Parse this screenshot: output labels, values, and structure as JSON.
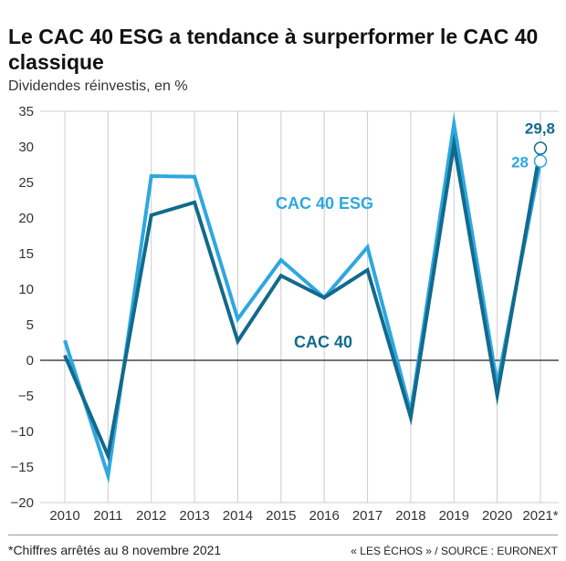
{
  "header": {
    "title": "Le CAC 40 ESG a tendance à surperformer le CAC 40 classique",
    "subtitle": "Dividendes réinvestis, en %"
  },
  "footer": {
    "note": "*Chiffres arrêtés au 8 novembre 2021",
    "source": "« LES ÉCHOS » / SOURCE : EURONEXT"
  },
  "colors": {
    "esg": "#2ea7e0",
    "cac": "#126a8c",
    "grid": "#cccccc",
    "zero": "#222222"
  },
  "chart_data": {
    "type": "line",
    "categories": [
      "2010",
      "2011",
      "2012",
      "2013",
      "2014",
      "2015",
      "2016",
      "2017",
      "2018",
      "2019",
      "2020",
      "2021*"
    ],
    "ylim": [
      -20,
      35
    ],
    "yticks": [
      -20,
      -15,
      -10,
      -5,
      0,
      5,
      10,
      15,
      20,
      25,
      30,
      35
    ],
    "grid": "vertical",
    "series": [
      {
        "name": "CAC 40 ESG",
        "key": "esg",
        "values": [
          2.8,
          -16.2,
          25.9,
          25.8,
          5.8,
          14.1,
          8.8,
          15.9,
          -7.3,
          33.2,
          -3.4,
          28
        ],
        "end_label": "28"
      },
      {
        "name": "CAC 40",
        "key": "cac",
        "values": [
          0.7,
          -13.4,
          20.4,
          22.2,
          2.7,
          11.9,
          8.8,
          12.7,
          -8,
          30.4,
          -4.9,
          29.8
        ],
        "end_label": "29,8"
      }
    ]
  }
}
